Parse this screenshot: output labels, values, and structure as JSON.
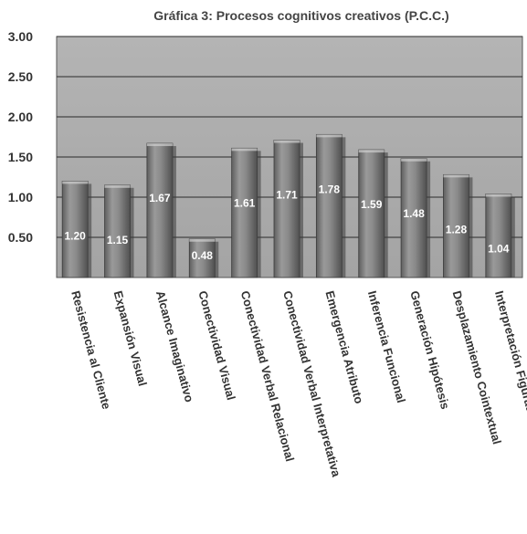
{
  "chart_data": {
    "type": "bar",
    "title": "Gráfica 3: Procesos cognitivos creativos (P.C.C.)",
    "categories": [
      "Resistencia al Cliente",
      "Expansión Visual",
      "Alcance Imaginativo",
      "Conectividad Visual",
      "Conectividad Verbal Relacional",
      "Conectividad Verbal Interpretativa",
      "Emergencia Atributo",
      "Inferencia Funcional",
      "Generación Hipótesis",
      "Desplazamiento Cointextual",
      "Interpretación Figurativa"
    ],
    "values": [
      1.2,
      1.15,
      1.67,
      0.48,
      1.61,
      1.71,
      1.78,
      1.59,
      1.48,
      1.28,
      1.04
    ],
    "value_labels": [
      "1.20",
      "1.15",
      "1.67",
      "0.48",
      "1.61",
      "1.71",
      "1.78",
      "1.59",
      "1.48",
      "1.28",
      "1.04"
    ],
    "yticks": [
      0.5,
      1.0,
      1.5,
      2.0,
      2.5,
      3.0
    ],
    "ytick_labels": [
      "0.50",
      "1.00",
      "1.50",
      "2.00",
      "2.50",
      "3.00"
    ],
    "ylim": [
      0,
      3.0
    ],
    "xlabel": "",
    "ylabel": "",
    "grid": true,
    "legend": "none",
    "colors": {
      "plot_background": "#a8a8a8",
      "bar_fill": "#7a7a7a",
      "bar_shadow": "#3a3a3a",
      "gridline": "#2a2a2a",
      "data_label_text": "#ffffff"
    }
  }
}
